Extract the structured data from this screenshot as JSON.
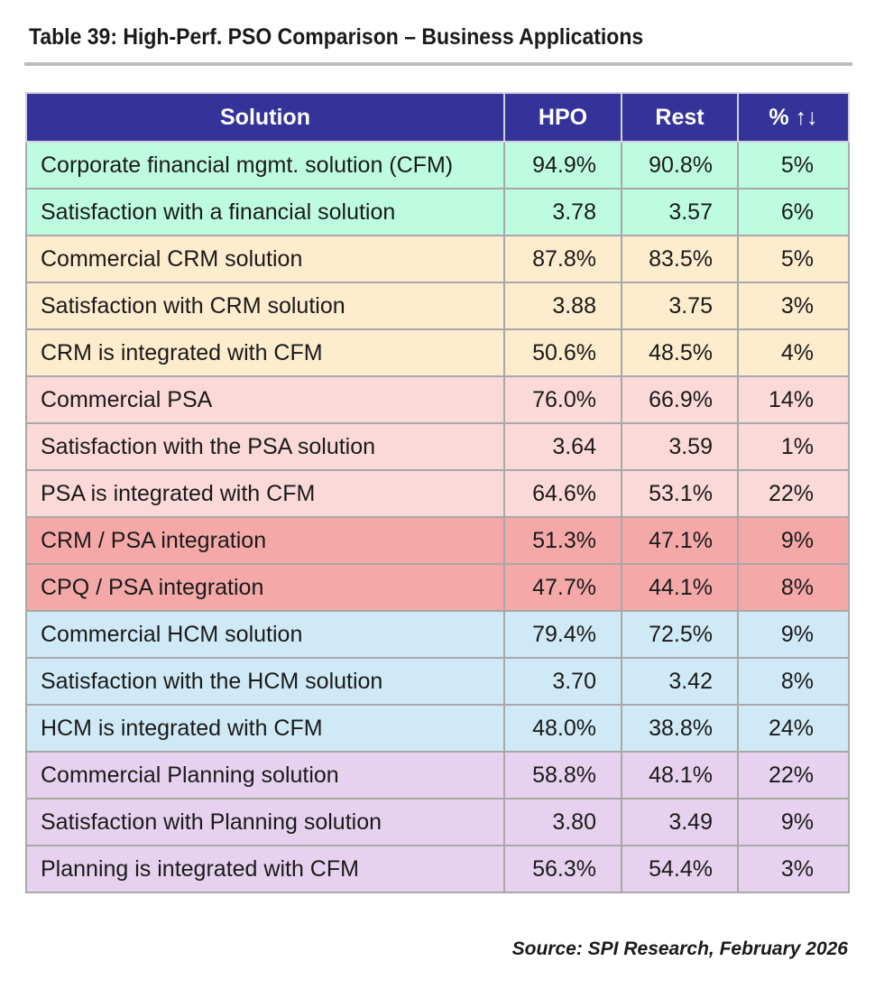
{
  "title": "Table 39: High-Perf. PSO Comparison – Business Applications",
  "headers": [
    "Solution",
    "HPO",
    "Rest",
    "% ↑↓"
  ],
  "group_colors": {
    "green": "#befce2",
    "orange": "#fdeccd",
    "pink": "#fbd9d9",
    "red": "#f4a9a8",
    "blue": "#cfeaf6",
    "purple": "#e6d2ee",
    "header": "#333399"
  },
  "rows": [
    {
      "group": "green",
      "solution": "Corporate financial mgmt. solution (CFM)",
      "hpo": "94.9%",
      "rest": "90.8%",
      "pct": "5%"
    },
    {
      "group": "green",
      "solution": "Satisfaction with a financial solution",
      "hpo": "3.78",
      "rest": "3.57",
      "pct": "6%"
    },
    {
      "group": "orange",
      "solution": "Commercial CRM solution",
      "hpo": "87.8%",
      "rest": "83.5%",
      "pct": "5%"
    },
    {
      "group": "orange",
      "solution": "Satisfaction with CRM solution",
      "hpo": "3.88",
      "rest": "3.75",
      "pct": "3%"
    },
    {
      "group": "orange",
      "solution": "CRM is integrated with CFM",
      "hpo": "50.6%",
      "rest": "48.5%",
      "pct": "4%"
    },
    {
      "group": "pink",
      "solution": "Commercial PSA",
      "hpo": "76.0%",
      "rest": "66.9%",
      "pct": "14%"
    },
    {
      "group": "pink",
      "solution": "Satisfaction with the PSA solution",
      "hpo": "3.64",
      "rest": "3.59",
      "pct": "1%"
    },
    {
      "group": "pink",
      "solution": "PSA is integrated with CFM",
      "hpo": "64.6%",
      "rest": "53.1%",
      "pct": "22%"
    },
    {
      "group": "red",
      "solution": "CRM / PSA integration",
      "hpo": "51.3%",
      "rest": "47.1%",
      "pct": "9%"
    },
    {
      "group": "red",
      "solution": "CPQ / PSA integration",
      "hpo": "47.7%",
      "rest": "44.1%",
      "pct": "8%"
    },
    {
      "group": "blue",
      "solution": "Commercial HCM solution",
      "hpo": "79.4%",
      "rest": "72.5%",
      "pct": "9%"
    },
    {
      "group": "blue",
      "solution": "Satisfaction with the HCM solution",
      "hpo": "3.70",
      "rest": "3.42",
      "pct": "8%"
    },
    {
      "group": "blue",
      "solution": "HCM is integrated with CFM",
      "hpo": "48.0%",
      "rest": "38.8%",
      "pct": "24%"
    },
    {
      "group": "purple",
      "solution": "Commercial Planning solution",
      "hpo": "58.8%",
      "rest": "48.1%",
      "pct": "22%"
    },
    {
      "group": "purple",
      "solution": "Satisfaction with Planning solution",
      "hpo": "3.80",
      "rest": "3.49",
      "pct": "9%"
    },
    {
      "group": "purple",
      "solution": "Planning is integrated with CFM",
      "hpo": "56.3%",
      "rest": "54.4%",
      "pct": "3%"
    }
  ],
  "source": "Source: SPI Research, February 2026"
}
